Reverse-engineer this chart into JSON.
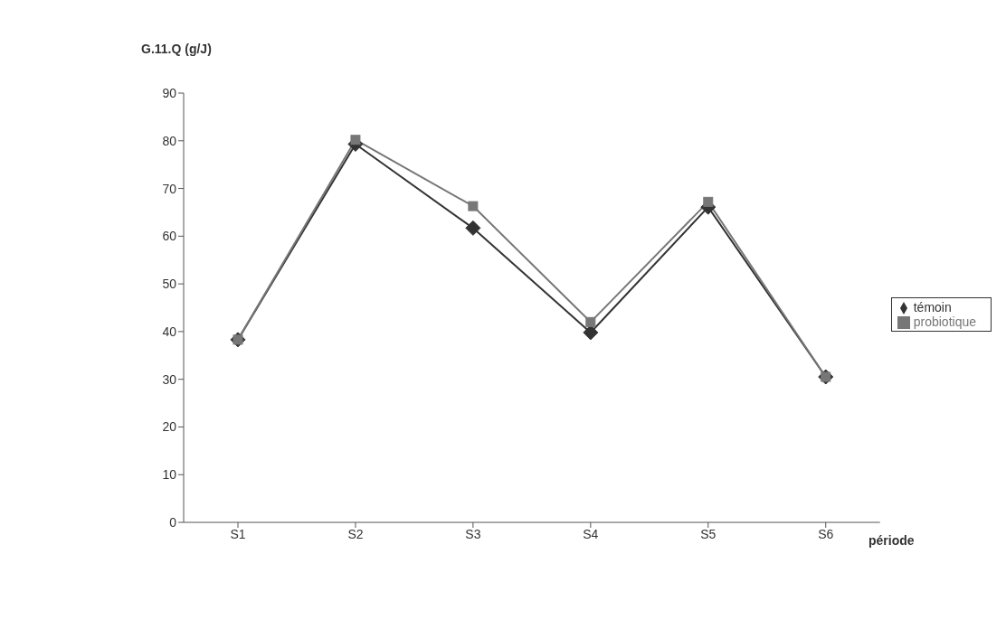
{
  "chart_data": {
    "type": "line",
    "ylabel": "G.11.Q (g/J)",
    "xlabel": "période",
    "categories": [
      "S1",
      "S2",
      "S3",
      "S4",
      "S5",
      "S6"
    ],
    "series": [
      {
        "name": "témoin",
        "color": "#333333",
        "marker": "diamond",
        "values": [
          38.3,
          79.3,
          61.7,
          39.8,
          66.1,
          30.5
        ]
      },
      {
        "name": "probiotique",
        "color": "#777777",
        "marker": "square",
        "values": [
          38.3,
          80.2,
          66.3,
          42,
          67.2,
          30.5
        ]
      }
    ],
    "ylim": [
      0,
      90
    ],
    "yticks": [
      0,
      10,
      20,
      30,
      40,
      50,
      60,
      70,
      80,
      90
    ],
    "grid": false,
    "legend": "right"
  }
}
